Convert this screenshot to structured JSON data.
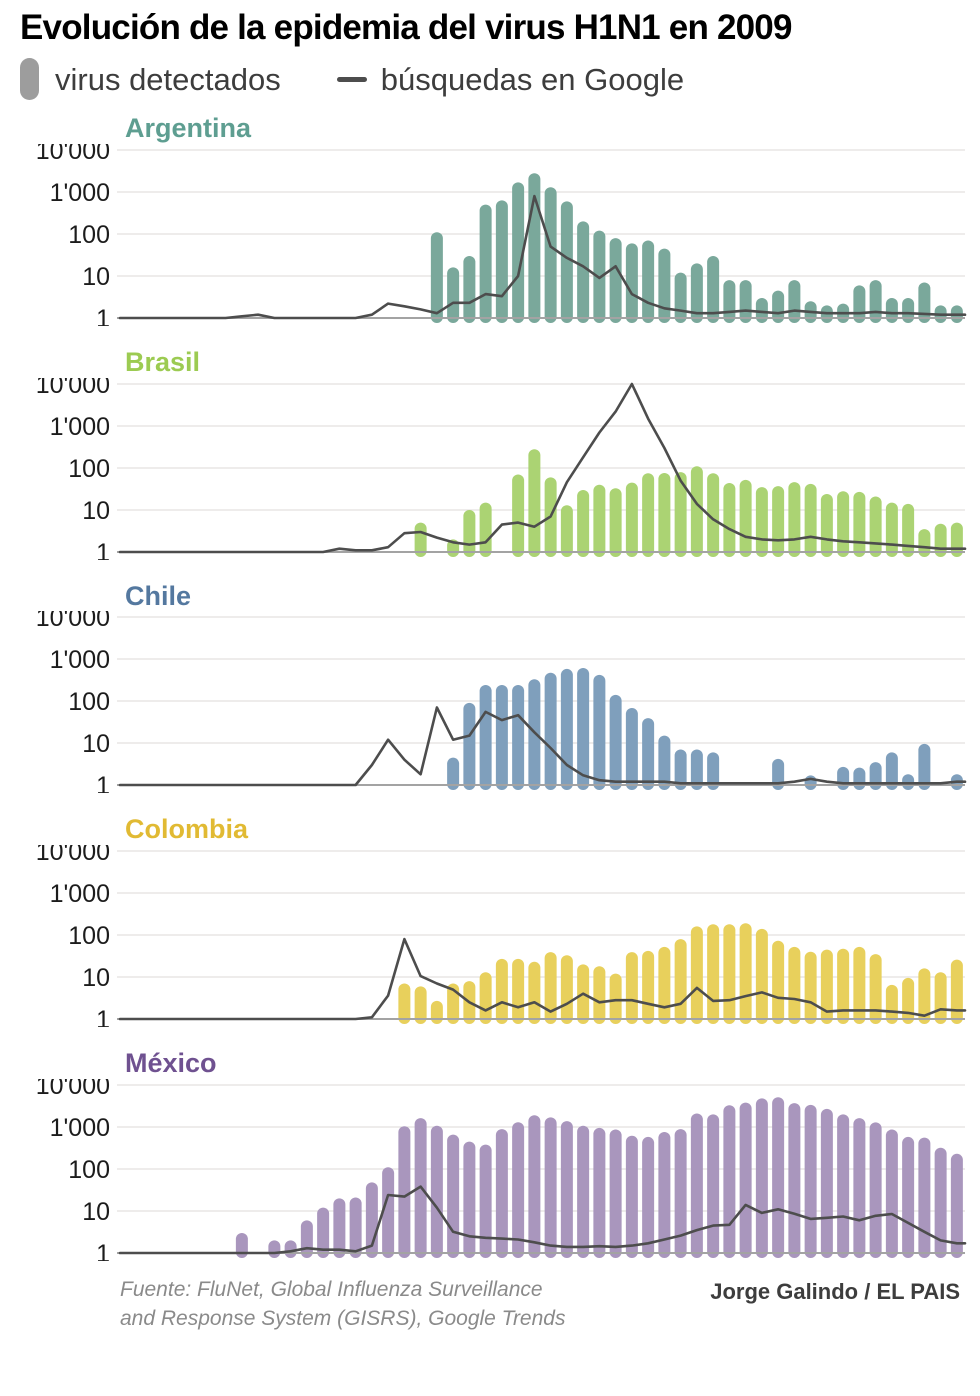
{
  "page_title": "Evolución de la epidemia del virus H1N1 en 2009",
  "legend": {
    "bars_label": "virus detectados",
    "line_label": "búsquedas en Google"
  },
  "footer": {
    "source_line1": "Fuente: FluNet, Global Influenza Surveillance",
    "source_line2": "and Response System (GISRS), Google Trends",
    "credit": "Jorge Galindo / EL PAIS"
  },
  "colors": {
    "line": "#4d4d4d",
    "grid": "#dcdad7",
    "axis_baseline": "#a3a3a3",
    "tick_label": "#1c1c1c",
    "legend_bar_swatch": "#9d9d9d"
  },
  "chart_data": {
    "type": "bar",
    "subtype": "small-multiples bar+line, weekly data for 2009 (52 weeks, no x tick labels shown)",
    "y_scale": "log",
    "ylim": [
      1,
      10000
    ],
    "y_ticks": [
      "10'000",
      "1'000",
      "100",
      "10",
      "1"
    ],
    "series_names": [
      "virus detectados (bars)",
      "búsquedas en Google (line)"
    ],
    "charts": [
      {
        "name": "Argentina",
        "title_color": "#5e9e91",
        "bar_color": "#7aa89b",
        "bars": [
          0,
          0,
          0,
          0,
          0,
          0,
          0,
          0,
          0,
          0,
          0,
          0,
          0,
          0,
          0,
          0,
          0,
          0,
          0,
          110,
          16,
          30,
          500,
          630,
          1700,
          2800,
          1300,
          600,
          200,
          120,
          80,
          60,
          70,
          45,
          12,
          20,
          30,
          8,
          8,
          3,
          4.5,
          8,
          2.5,
          2,
          2.2,
          6,
          8,
          3,
          3,
          7,
          2,
          2
        ],
        "line": [
          1,
          1,
          1,
          1,
          1,
          1,
          1,
          1.1,
          1.2,
          1,
          1,
          1,
          1,
          1,
          1,
          1.2,
          2.2,
          1.9,
          1.6,
          1.3,
          2.3,
          2.3,
          3.7,
          3.3,
          10,
          800,
          50,
          27,
          17,
          9,
          17,
          3.7,
          2.3,
          1.7,
          1.5,
          1.3,
          1.3,
          1.4,
          1.5,
          1.4,
          1.3,
          1.5,
          1.4,
          1.3,
          1.3,
          1.3,
          1.4,
          1.3,
          1.3,
          1.25,
          1.2,
          1.2
        ]
      },
      {
        "name": "Brasil",
        "title_color": "#9ccb52",
        "bar_color": "#abd373",
        "bars": [
          0,
          0,
          0,
          0,
          0,
          0,
          0,
          0,
          0,
          0,
          0,
          0,
          0,
          0,
          0,
          0,
          0,
          0,
          5,
          0,
          2,
          10,
          15,
          0,
          70,
          280,
          60,
          13,
          30,
          40,
          33,
          45,
          75,
          76,
          80,
          110,
          75,
          44,
          52,
          35,
          37,
          46,
          42,
          24,
          28,
          27,
          21,
          15,
          14,
          3.5,
          4.7,
          5
        ],
        "line": [
          1,
          1,
          1,
          1,
          1,
          1,
          1,
          1,
          1,
          1,
          1,
          1,
          1,
          1.2,
          1.1,
          1.1,
          1.3,
          2.8,
          3,
          2.2,
          1.7,
          1.5,
          1.7,
          4.5,
          5,
          4,
          7,
          46,
          180,
          700,
          2200,
          10000,
          1500,
          300,
          50,
          14,
          6,
          3.5,
          2.3,
          2,
          1.9,
          2,
          2.3,
          2,
          1.8,
          1.7,
          1.6,
          1.5,
          1.4,
          1.3,
          1.2,
          1.2
        ]
      },
      {
        "name": "Chile",
        "title_color": "#54789f",
        "bar_color": "#7f9fbc",
        "bars": [
          0,
          0,
          0,
          0,
          0,
          0,
          0,
          0,
          0,
          0,
          0,
          0,
          0,
          0,
          0,
          0,
          0,
          0,
          0,
          0,
          4.5,
          90,
          240,
          240,
          240,
          330,
          470,
          580,
          610,
          420,
          140,
          68,
          39,
          15,
          7,
          7,
          6,
          0,
          0,
          0,
          4.2,
          0,
          1.7,
          0,
          2.7,
          2.6,
          3.5,
          6,
          1.8,
          9.5,
          0,
          1.8
        ],
        "line": [
          1,
          1,
          1,
          1,
          1,
          1,
          1,
          1,
          1,
          1,
          1,
          1,
          1,
          1,
          1,
          3,
          12,
          4,
          1.8,
          70,
          12,
          15,
          55,
          35,
          46,
          18,
          7.6,
          3,
          1.7,
          1.3,
          1.2,
          1.2,
          1.2,
          1.2,
          1.1,
          1.1,
          1.1,
          1.1,
          1.1,
          1.1,
          1.1,
          1.2,
          1.4,
          1.2,
          1.1,
          1.1,
          1.1,
          1.1,
          1.1,
          1.1,
          1.1,
          1.2
        ]
      },
      {
        "name": "Colombia",
        "title_color": "#e1ba33",
        "bar_color": "#e8d05c",
        "bars": [
          0,
          0,
          0,
          0,
          0,
          0,
          0,
          0,
          0,
          0,
          0,
          0,
          0,
          0,
          0,
          0,
          0,
          7,
          6,
          2.7,
          7,
          8,
          13,
          27,
          27,
          23,
          39,
          33,
          20,
          18,
          12,
          39,
          42,
          52,
          80,
          160,
          180,
          180,
          190,
          140,
          73,
          52,
          40,
          45,
          47,
          52,
          35,
          6.5,
          9.5,
          16,
          13,
          26
        ],
        "line": [
          1,
          1,
          1,
          1,
          1,
          1,
          1,
          1,
          1,
          1,
          1,
          1,
          1,
          1,
          1,
          1.1,
          3.6,
          80,
          10.5,
          7,
          5,
          2.5,
          1.6,
          2.5,
          1.9,
          2.5,
          1.5,
          2.3,
          4,
          2.5,
          2.8,
          2.8,
          2.3,
          1.9,
          2.3,
          5.5,
          2.7,
          2.8,
          3.5,
          4.3,
          3.2,
          3,
          2.5,
          1.5,
          1.6,
          1.6,
          1.6,
          1.5,
          1.4,
          1.2,
          1.7,
          1.6
        ]
      },
      {
        "name": "México",
        "title_color": "#6f5190",
        "bar_color": "#a996bd",
        "bars": [
          0,
          0,
          0,
          0,
          0,
          0,
          0,
          3,
          0,
          2,
          2,
          6,
          12,
          20,
          21,
          48,
          110,
          1040,
          1630,
          1070,
          660,
          450,
          380,
          890,
          1300,
          1900,
          1700,
          1380,
          1070,
          950,
          870,
          620,
          580,
          760,
          890,
          2100,
          2000,
          3300,
          3800,
          4800,
          5100,
          3700,
          3360,
          2700,
          2000,
          1630,
          1290,
          870,
          580,
          560,
          320,
          230
        ],
        "line": [
          1,
          1,
          1,
          1,
          1,
          1,
          1,
          1,
          1,
          1,
          1.1,
          1.3,
          1.2,
          1.2,
          1.1,
          1.5,
          24,
          22,
          38,
          12,
          3.2,
          2.5,
          2.3,
          2.2,
          2.1,
          1.8,
          1.5,
          1.4,
          1.4,
          1.45,
          1.4,
          1.5,
          1.7,
          2.1,
          2.6,
          3.5,
          4.5,
          4.7,
          14,
          9,
          11,
          8.6,
          6.5,
          6.9,
          7.4,
          6,
          7.7,
          8.5,
          5.2,
          3.2,
          2,
          1.7
        ]
      }
    ]
  }
}
